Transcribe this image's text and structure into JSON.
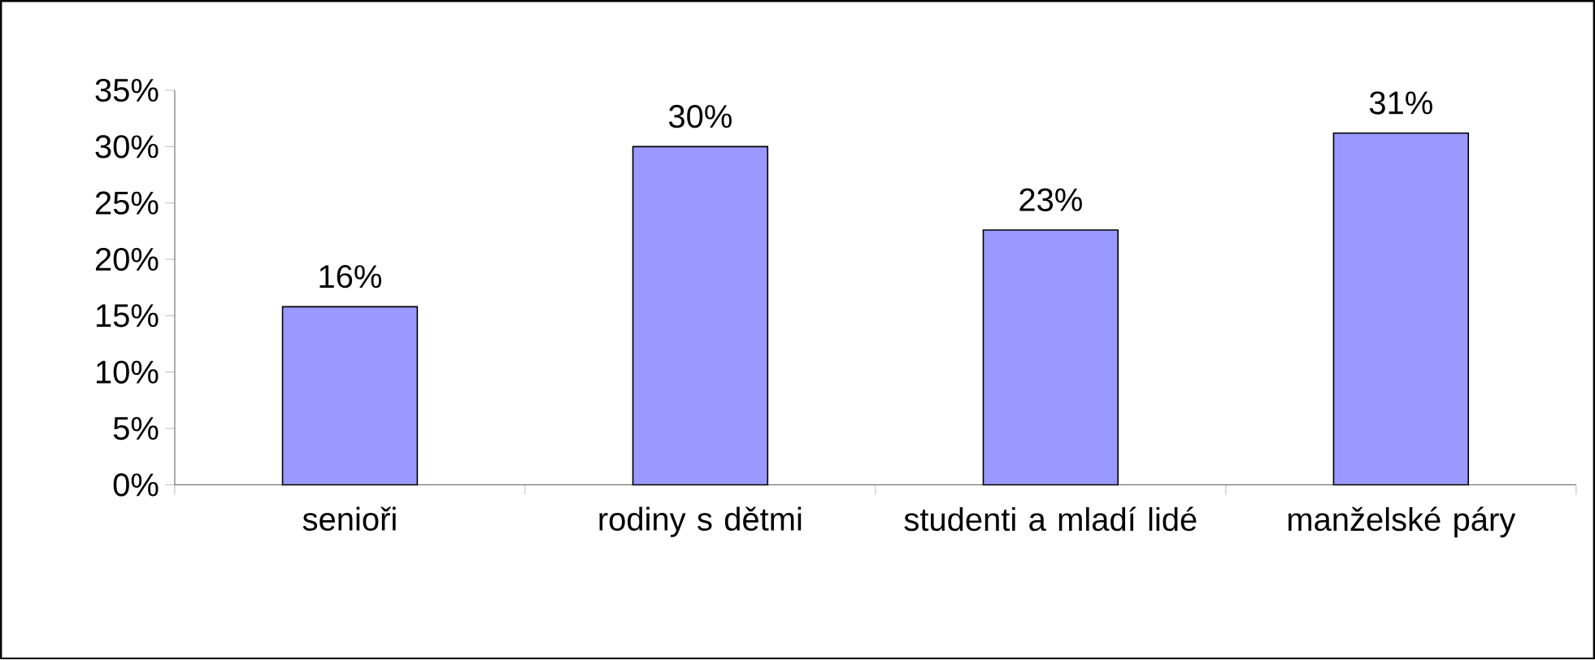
{
  "chart_data": {
    "type": "bar",
    "categories": [
      "senioři",
      "rodiny s dětmi",
      "studenti a mladí lidé",
      "manželské páry"
    ],
    "values": [
      15.8,
      30,
      22.6,
      31.2
    ],
    "value_labels": [
      "16%",
      "30%",
      "23%",
      "31%"
    ],
    "color": "#9999ff",
    "ylim": [
      0,
      35
    ],
    "yticks": [
      {
        "value": 0,
        "label": "0%"
      },
      {
        "value": 5,
        "label": "5%"
      },
      {
        "value": 10,
        "label": "10%"
      },
      {
        "value": 15,
        "label": "15%"
      },
      {
        "value": 20,
        "label": "20%"
      },
      {
        "value": 25,
        "label": "25%"
      },
      {
        "value": 30,
        "label": "30%"
      },
      {
        "value": 35,
        "label": "35%"
      }
    ],
    "grid": false
  }
}
